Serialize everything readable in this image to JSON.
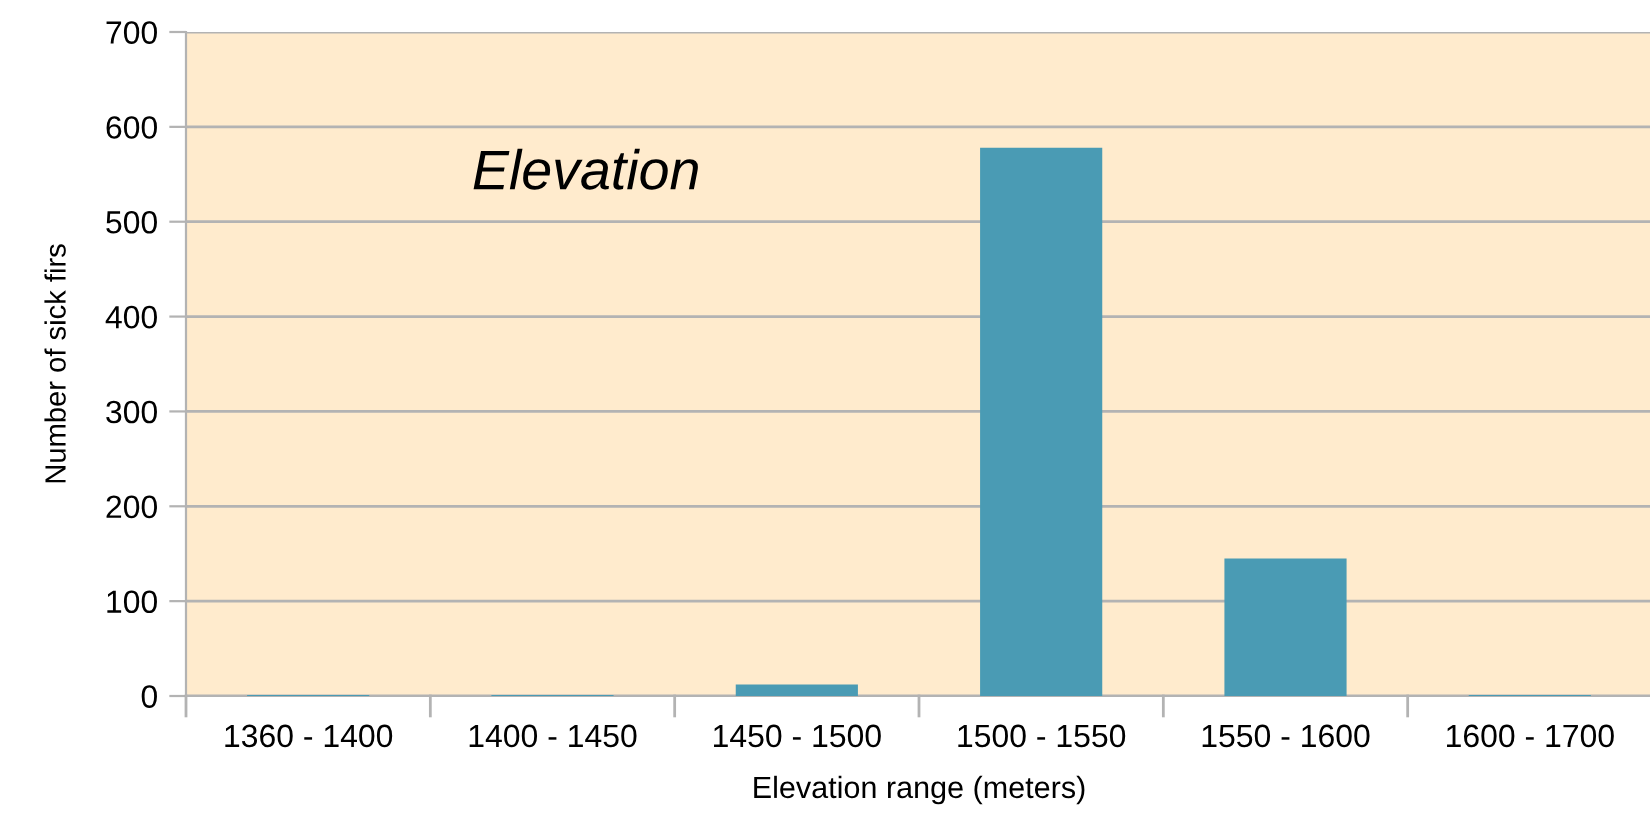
{
  "chart_data": {
    "type": "bar",
    "categories": [
      "1360 - 1400",
      "1400 - 1450",
      "1450 - 1500",
      "1500 - 1550",
      "1550 - 1600",
      "1600 - 1700"
    ],
    "values": [
      1,
      1,
      12,
      578,
      145,
      1
    ],
    "color": "#4a9bb4",
    "xlabel": "Elevation range (meters)",
    "ylabel": "Number of sick firs",
    "annotations": [
      "Elevation"
    ],
    "ylim": [
      0,
      700
    ],
    "yticks": [
      0,
      100,
      200,
      300,
      400,
      500,
      600,
      700
    ],
    "grid": "y",
    "legend": false
  }
}
